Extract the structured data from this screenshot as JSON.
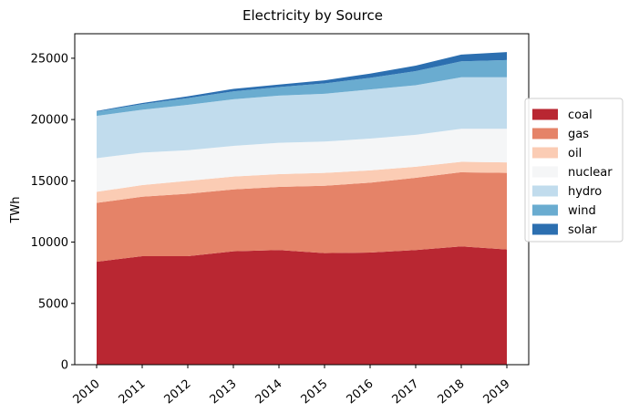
{
  "chart_data": {
    "type": "area",
    "stacked": true,
    "title": "Electricity by Source",
    "xlabel": "",
    "ylabel": "TWh",
    "x": [
      "2010",
      "2011",
      "2012",
      "2013",
      "2014",
      "2015",
      "2016",
      "2017",
      "2018",
      "2019"
    ],
    "ylim": [
      0,
      27000
    ],
    "yticks": [
      0,
      5000,
      10000,
      15000,
      20000,
      25000
    ],
    "grid": false,
    "legend_position": "right",
    "series": [
      {
        "name": "coal",
        "color": "#b92732",
        "values": [
          8400,
          8850,
          8850,
          9250,
          9350,
          9100,
          9150,
          9350,
          9650,
          9400
        ]
      },
      {
        "name": "gas",
        "color": "#e58368",
        "values": [
          4800,
          4850,
          5100,
          5050,
          5150,
          5500,
          5700,
          5900,
          6050,
          6250
        ]
      },
      {
        "name": "oil",
        "color": "#fbccb4",
        "values": [
          900,
          950,
          1050,
          1050,
          1050,
          1050,
          1000,
          900,
          850,
          850
        ]
      },
      {
        "name": "nuclear",
        "color": "#f5f6f7",
        "values": [
          2750,
          2650,
          2500,
          2500,
          2550,
          2550,
          2600,
          2600,
          2700,
          2750
        ]
      },
      {
        "name": "hydro",
        "color": "#c1dced",
        "values": [
          3450,
          3500,
          3700,
          3800,
          3850,
          3900,
          4000,
          4050,
          4200,
          4200
        ]
      },
      {
        "name": "wind",
        "color": "#6aacd0",
        "values": [
          350,
          450,
          550,
          650,
          700,
          850,
          950,
          1150,
          1300,
          1400
        ]
      },
      {
        "name": "solar",
        "color": "#2c6fb0",
        "values": [
          50,
          100,
          150,
          200,
          200,
          250,
          350,
          450,
          550,
          650
        ]
      }
    ]
  }
}
